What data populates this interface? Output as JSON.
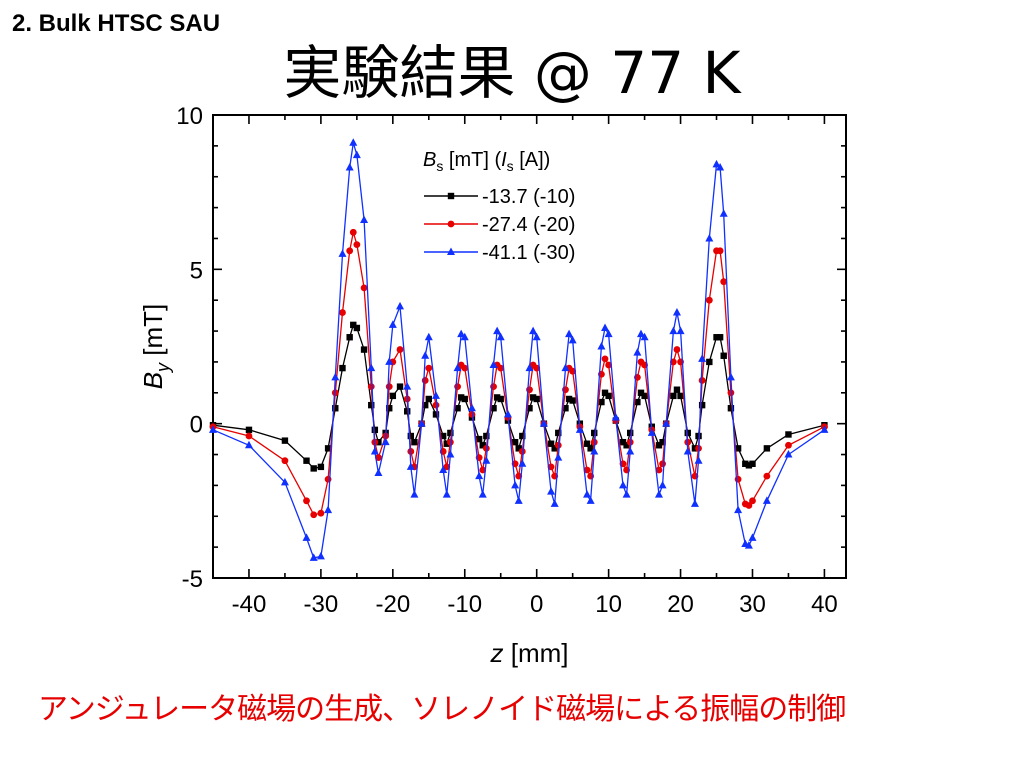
{
  "header": {
    "section_label": "2. Bulk HTSC SAU",
    "title": "実験結果 @ 77 K"
  },
  "caption": "アンジュレータ磁場の生成、ソレノイド磁場による振幅の制御",
  "chart_data": {
    "type": "line",
    "title": "",
    "xlabel": {
      "var": "z",
      "unit": "[mm]"
    },
    "ylabel": {
      "var": "B",
      "sub": "y",
      "unit": "[mT]"
    },
    "xlim": [
      -45,
      43
    ],
    "ylim": [
      -5,
      10
    ],
    "xticks": [
      -40,
      -30,
      -20,
      -10,
      0,
      10,
      20,
      30,
      40
    ],
    "yticks": [
      -5,
      0,
      5,
      10
    ],
    "legend": {
      "position": "top-center",
      "title": {
        "var": "B",
        "sub": "s",
        "mid": " [mT] (",
        "var2": "I",
        "sub2": "s",
        "end": " [A])"
      }
    },
    "series": [
      {
        "name": "-13.7 (-10)",
        "color": "#000000",
        "marker": "square",
        "x": [
          -45,
          -40,
          -35,
          -32,
          -31,
          -30,
          -29,
          -28,
          -27,
          -26,
          -25.5,
          -25,
          -24,
          -23,
          -22.5,
          -22,
          -21,
          -20.5,
          -20,
          -19,
          -18,
          -17.5,
          -17,
          -16,
          -15.5,
          -15,
          -14,
          -13,
          -12.5,
          -12,
          -11,
          -10.5,
          -10,
          -9,
          -8,
          -7.5,
          -7,
          -6,
          -5.5,
          -5,
          -4,
          -3,
          -2.5,
          -2,
          -1,
          -0.5,
          0,
          1,
          2,
          2.5,
          3,
          4,
          4.5,
          5,
          6,
          7,
          7.5,
          8,
          9,
          9.5,
          10,
          11,
          12,
          12.5,
          13,
          14,
          14.5,
          15,
          16,
          17,
          17.5,
          18,
          19,
          19.5,
          20,
          21,
          22,
          22.5,
          23,
          24,
          25,
          25.5,
          26,
          27,
          28,
          29,
          29.5,
          30,
          32,
          35,
          40
        ],
        "y": [
          -0.05,
          -0.2,
          -0.55,
          -1.2,
          -1.45,
          -1.4,
          -0.8,
          0.5,
          1.8,
          2.8,
          3.2,
          3.1,
          2.4,
          0.6,
          -0.2,
          -0.6,
          -0.3,
          0.5,
          0.9,
          1.2,
          0.4,
          -0.4,
          -0.6,
          0.0,
          0.6,
          0.8,
          0.3,
          -0.4,
          -0.65,
          -0.3,
          0.5,
          0.85,
          0.8,
          0.2,
          -0.5,
          -0.7,
          -0.4,
          0.5,
          0.85,
          0.8,
          0.1,
          -0.6,
          -0.8,
          -0.4,
          0.5,
          0.85,
          0.8,
          0.0,
          -0.65,
          -0.8,
          -0.3,
          0.5,
          0.8,
          0.75,
          0.0,
          -0.65,
          -0.8,
          -0.3,
          0.7,
          1.0,
          0.9,
          0.1,
          -0.6,
          -0.7,
          -0.3,
          0.7,
          1.0,
          0.9,
          -0.1,
          -0.7,
          -0.6,
          0.0,
          0.9,
          1.1,
          0.9,
          -0.3,
          -0.8,
          -0.4,
          0.6,
          2.0,
          2.8,
          2.8,
          2.2,
          0.5,
          -0.8,
          -1.3,
          -1.35,
          -1.3,
          -0.8,
          -0.35,
          -0.05
        ]
      },
      {
        "name": "-27.4 (-20)",
        "color": "#e60000",
        "marker": "circle",
        "x": [
          -45,
          -40,
          -35,
          -32,
          -31,
          -30,
          -29,
          -28,
          -27,
          -26,
          -25.5,
          -25,
          -24,
          -23,
          -22.5,
          -22,
          -21,
          -20.5,
          -20,
          -19,
          -18,
          -17.5,
          -17,
          -16,
          -15.5,
          -15,
          -14,
          -13,
          -12.5,
          -12,
          -11,
          -10.5,
          -10,
          -9,
          -8,
          -7.5,
          -7,
          -6,
          -5.5,
          -5,
          -4,
          -3,
          -2.5,
          -2,
          -1,
          -0.5,
          0,
          1,
          2,
          2.5,
          3,
          4,
          4.5,
          5,
          6,
          7,
          7.5,
          8,
          9,
          9.5,
          10,
          11,
          12,
          12.5,
          13,
          14,
          14.5,
          15,
          16,
          17,
          17.5,
          18,
          19,
          19.5,
          20,
          21,
          22,
          22.5,
          23,
          24,
          25,
          25.5,
          26,
          27,
          28,
          29,
          29.5,
          30,
          32,
          35,
          40
        ],
        "y": [
          -0.1,
          -0.4,
          -1.2,
          -2.5,
          -2.95,
          -2.9,
          -1.8,
          1.0,
          3.6,
          5.6,
          6.2,
          5.8,
          4.4,
          1.2,
          -0.6,
          -1.1,
          -0.4,
          1.2,
          2.0,
          2.4,
          0.8,
          -0.9,
          -1.4,
          0.0,
          1.4,
          1.8,
          0.6,
          -0.9,
          -1.4,
          -0.6,
          1.2,
          1.9,
          1.8,
          0.3,
          -1.1,
          -1.5,
          -0.8,
          1.2,
          1.9,
          1.8,
          0.2,
          -1.3,
          -1.7,
          -0.9,
          1.1,
          1.9,
          1.8,
          0.0,
          -1.4,
          -1.7,
          -0.7,
          1.1,
          1.8,
          1.7,
          -0.1,
          -1.5,
          -1.7,
          -0.6,
          1.6,
          2.1,
          1.9,
          0.1,
          -1.3,
          -1.5,
          -0.6,
          1.5,
          2.0,
          1.9,
          -0.2,
          -1.5,
          -1.3,
          0.0,
          2.0,
          2.4,
          2.0,
          -0.6,
          -1.7,
          -0.8,
          1.4,
          4.0,
          5.6,
          5.6,
          4.6,
          1.0,
          -1.8,
          -2.6,
          -2.65,
          -2.5,
          -1.7,
          -0.7,
          -0.1
        ]
      },
      {
        "name": "-41.1 (-30)",
        "color": "#1030ff",
        "marker": "triangle",
        "x": [
          -45,
          -40,
          -35,
          -32,
          -31,
          -30,
          -29,
          -28,
          -27,
          -26,
          -25.5,
          -25,
          -24,
          -23,
          -22.5,
          -22,
          -21,
          -20.5,
          -20,
          -19,
          -18,
          -17.5,
          -17,
          -16,
          -15.5,
          -15,
          -14,
          -13,
          -12.5,
          -12,
          -11,
          -10.5,
          -10,
          -9,
          -8,
          -7.5,
          -7,
          -6,
          -5.5,
          -5,
          -4,
          -3,
          -2.5,
          -2,
          -1,
          -0.5,
          0,
          1,
          2,
          2.5,
          3,
          4,
          4.5,
          5,
          6,
          7,
          7.5,
          8,
          9,
          9.5,
          10,
          11,
          12,
          12.5,
          13,
          14,
          14.5,
          15,
          16,
          17,
          17.5,
          18,
          19,
          19.5,
          20,
          21,
          22,
          22.5,
          23,
          24,
          25,
          25.5,
          26,
          27,
          28,
          29,
          29.5,
          30,
          32,
          35,
          40
        ],
        "y": [
          -0.2,
          -0.7,
          -1.9,
          -3.7,
          -4.35,
          -4.3,
          -2.8,
          1.5,
          5.5,
          8.3,
          9.1,
          8.7,
          6.6,
          1.8,
          -0.9,
          -1.6,
          -0.6,
          2.0,
          3.2,
          3.8,
          1.2,
          -1.4,
          -2.3,
          0.0,
          2.2,
          2.8,
          0.9,
          -1.5,
          -2.3,
          -1.0,
          1.8,
          2.9,
          2.8,
          0.5,
          -1.7,
          -2.3,
          -1.2,
          1.9,
          3.0,
          2.8,
          0.3,
          -2.0,
          -2.5,
          -1.3,
          1.8,
          3.0,
          2.8,
          0.0,
          -2.2,
          -2.6,
          -1.1,
          1.8,
          2.9,
          2.7,
          -0.2,
          -2.3,
          -2.5,
          -0.9,
          2.5,
          3.1,
          2.9,
          0.2,
          -2.0,
          -2.3,
          -0.9,
          2.3,
          2.9,
          2.8,
          -0.3,
          -2.3,
          -2.0,
          0.0,
          3.0,
          3.6,
          3.0,
          -0.9,
          -2.6,
          -1.2,
          2.1,
          6.0,
          8.4,
          8.3,
          6.8,
          1.5,
          -2.8,
          -3.9,
          -3.95,
          -3.7,
          -2.5,
          -1.0,
          -0.2
        ]
      }
    ]
  }
}
